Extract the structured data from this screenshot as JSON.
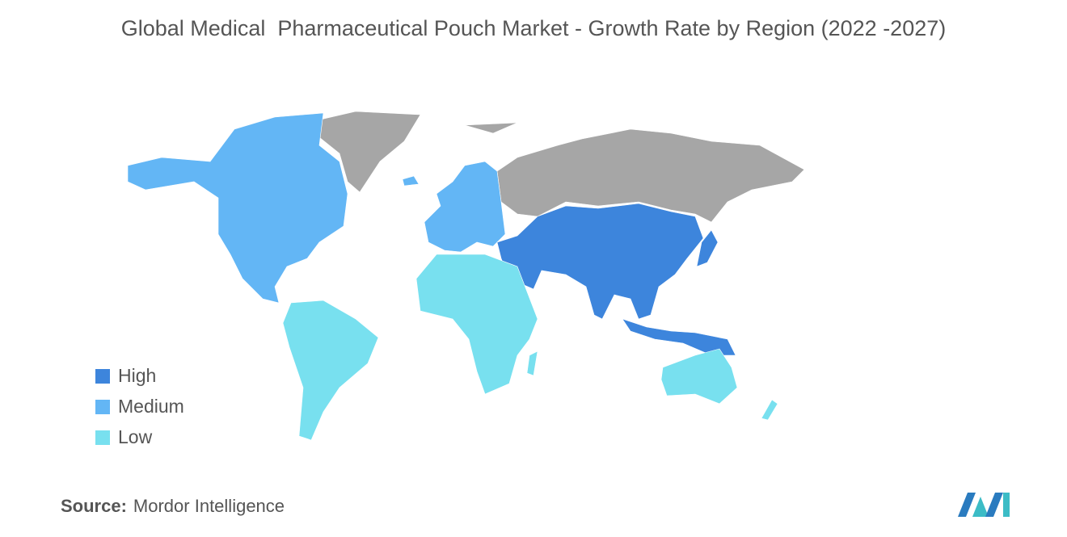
{
  "header": {
    "title": "Global Medical  Pharmaceutical Pouch Market - Growth Rate by Region (2022 -2027)"
  },
  "legend": [
    {
      "label": "High",
      "color": "#3d85dc"
    },
    {
      "label": "Medium",
      "color": "#63b6f5"
    },
    {
      "label": "Low",
      "color": "#78e0ef"
    }
  ],
  "footer": {
    "source_label": "Source:",
    "source": "Mordor Intelligence"
  }
}
